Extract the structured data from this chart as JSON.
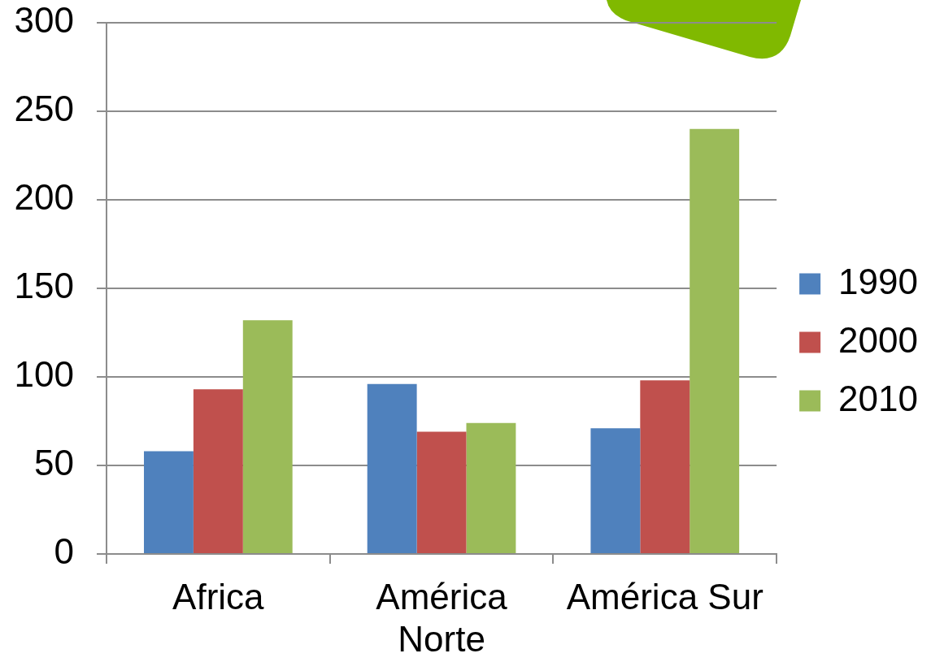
{
  "chart_data": {
    "type": "bar",
    "categories": [
      "Africa",
      "América Norte",
      "América Sur"
    ],
    "series": [
      {
        "name": "1990",
        "color": "#4f81bd",
        "values": [
          58,
          96,
          71
        ]
      },
      {
        "name": "2000",
        "color": "#c0504d",
        "values": [
          93,
          69,
          98
        ]
      },
      {
        "name": "2010",
        "color": "#9bbb59",
        "values": [
          132,
          74,
          240
        ]
      }
    ],
    "ylim": [
      0,
      300
    ],
    "yticks": [
      0,
      50,
      100,
      150,
      200,
      250,
      300
    ],
    "grid": "y",
    "legend": "right"
  }
}
